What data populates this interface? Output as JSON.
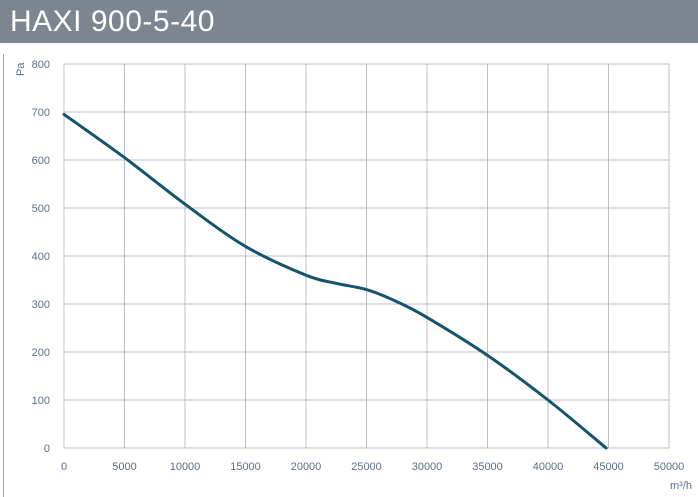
{
  "header": {
    "title": "HAXI 900-5-40"
  },
  "colors": {
    "header_bg": "#7d8590",
    "curve": "#16536e",
    "grid": "#b8c0c8",
    "tick_text": "#5a6f86",
    "accent_rule": "#5bc0c8"
  },
  "chart_data": {
    "type": "line",
    "title": "",
    "xlabel": "m³/h",
    "ylabel": "Pa",
    "xlim": [
      0,
      50000
    ],
    "ylim": [
      0,
      800
    ],
    "x_ticks": [
      0,
      5000,
      10000,
      15000,
      20000,
      25000,
      30000,
      35000,
      40000,
      45000,
      50000
    ],
    "y_ticks": [
      0,
      100,
      200,
      300,
      400,
      500,
      600,
      700,
      800
    ],
    "grid": true,
    "series": [
      {
        "name": "",
        "x": [
          0,
          5000,
          10000,
          15000,
          20000,
          22500,
          25000,
          27500,
          30000,
          35000,
          40000,
          44800
        ],
        "y": [
          695,
          605,
          508,
          420,
          360,
          343,
          330,
          305,
          272,
          193,
          100,
          0
        ]
      }
    ]
  }
}
